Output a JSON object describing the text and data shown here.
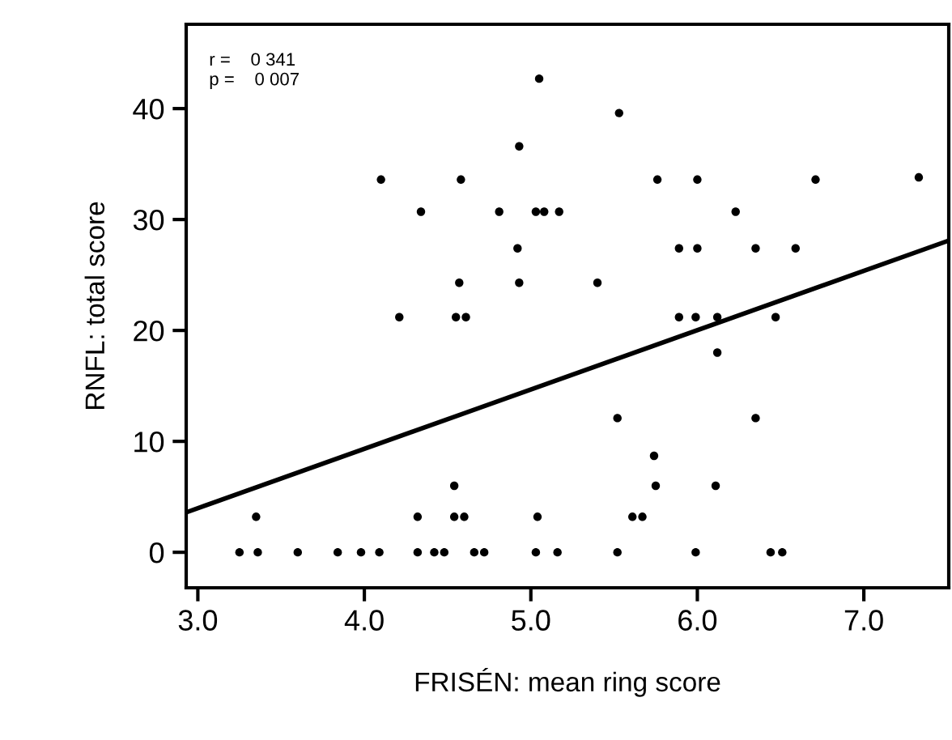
{
  "chart_data": {
    "type": "scatter",
    "xlabel": "FRISÉN: mean ring score",
    "ylabel": "RNFL: total score",
    "annotations": [
      "r =    0 341",
      "p =    0 007"
    ],
    "series": [
      {
        "color": "#000000",
        "x": [
          3.25,
          3.36,
          3.6,
          3.84,
          3.98,
          4.09,
          4.32,
          4.42,
          4.48,
          4.66,
          4.72,
          5.03,
          5.16,
          5.52,
          5.99,
          6.44,
          6.51,
          3.35,
          4.32,
          4.54,
          4.6,
          5.04,
          5.61,
          5.67,
          4.54,
          5.75,
          6.11,
          5.74,
          5.52,
          6.35,
          6.12,
          5.89,
          5.99,
          6.12,
          6.47,
          4.21,
          4.55,
          4.61,
          5.05,
          4.93,
          4.1,
          4.58,
          4.34,
          4.81,
          5.03,
          5.08,
          5.17,
          4.92,
          4.57,
          4.93,
          5.53,
          5.76,
          6.0,
          6.71,
          7.33,
          6.23,
          5.89,
          6.0,
          6.35,
          6.59,
          5.4
        ],
        "values": [
          0,
          0,
          0,
          0,
          0,
          0,
          0,
          0,
          0,
          0,
          0,
          0,
          0,
          0,
          0,
          0,
          0,
          3.2,
          3.2,
          3.2,
          3.2,
          3.2,
          3.2,
          3.2,
          6,
          6,
          6,
          8.7,
          12.1,
          12.1,
          18,
          21.2,
          21.2,
          21.2,
          21.2,
          21.2,
          21.2,
          21.2,
          42.7,
          36.6,
          33.6,
          33.6,
          30.7,
          30.7,
          30.7,
          30.7,
          30.7,
          27.4,
          24.3,
          24.3,
          39.6,
          33.6,
          33.6,
          33.6,
          33.8,
          30.7,
          27.4,
          27.4,
          27.4,
          27.4,
          24.3
        ]
      },
      {
        "type": "line",
        "color": "#000000",
        "x": [
          2.93,
          7.51
        ],
        "values": [
          3.6,
          28.1
        ]
      }
    ],
    "xlim": [
      2.93,
      7.51
    ],
    "ylim": [
      -3.2,
      47.6
    ],
    "xticks": [
      {
        "value": 3,
        "label": "3.0"
      },
      {
        "value": 4,
        "label": "4.0"
      },
      {
        "value": 5,
        "label": "5.0"
      },
      {
        "value": 6,
        "label": "6.0"
      },
      {
        "value": 7,
        "label": "7.0"
      }
    ],
    "yticks": [
      0,
      10,
      20,
      30,
      40
    ],
    "grid": false,
    "legend": false
  }
}
